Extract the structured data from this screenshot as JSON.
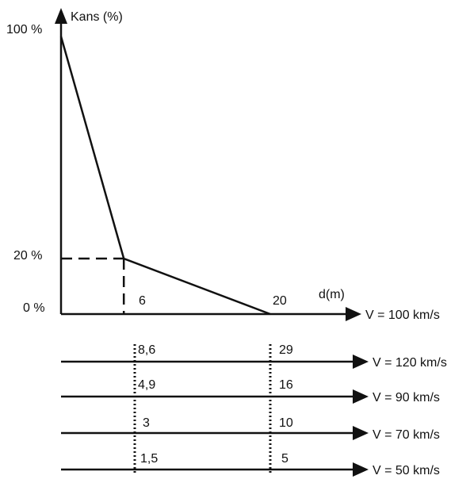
{
  "chart_data": {
    "type": "line",
    "ylabel": "Kans (%)",
    "xlabel": "d(m)",
    "y_ticks": [
      {
        "value": 100,
        "label": "100 %"
      },
      {
        "value": 20,
        "label": "20 %"
      },
      {
        "value": 0,
        "label": "0 %"
      }
    ],
    "series": [
      {
        "x": [
          0,
          6,
          20
        ],
        "y": [
          100,
          20,
          0
        ]
      }
    ],
    "guide": {
      "x": 6,
      "y": 20
    },
    "reference_speed_label": "V = 100 km/s",
    "reference_ticks": [
      {
        "value": 6,
        "label": "6"
      },
      {
        "value": 20,
        "label": "20"
      }
    ],
    "speed_scales": [
      {
        "label": "V = 120 km/s",
        "values": [
          "8,6",
          "29"
        ]
      },
      {
        "label": "V = 90 km/s",
        "values": [
          "4,9",
          "16"
        ]
      },
      {
        "label": "V = 70 km/s",
        "values": [
          "3",
          "10"
        ]
      },
      {
        "label": "V = 50 km/s",
        "values": [
          "1,5",
          "5"
        ]
      }
    ]
  },
  "colors": {
    "ink": "#111111",
    "background": "#ffffff"
  }
}
